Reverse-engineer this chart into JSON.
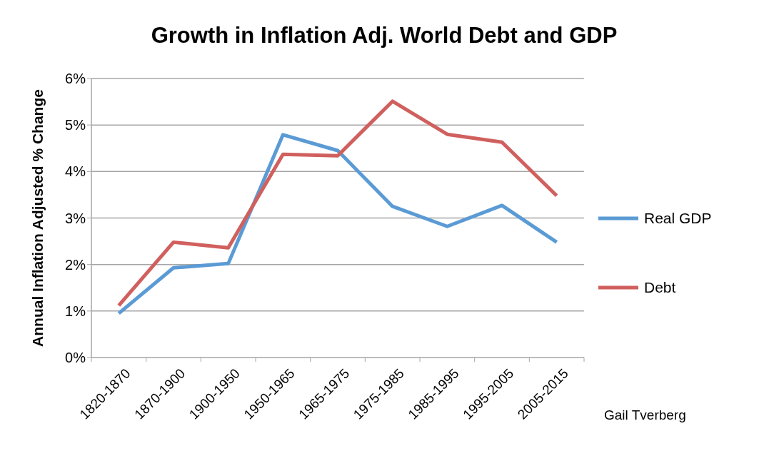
{
  "chart_data": {
    "type": "line",
    "title": "Growth in Inflation Adj. World Debt and GDP",
    "ylabel": "Annual Inflation Adjusted % Change",
    "categories": [
      "1820-1870",
      "1870-1900",
      "1900-1950",
      "1950-1965",
      "1965-1975",
      "1975-1985",
      "1985-1995",
      "1995-2005",
      "2005-2015"
    ],
    "series": [
      {
        "name": "Real GDP",
        "color": "#5b9bd5",
        "values": [
          0.95,
          1.93,
          2.02,
          4.79,
          4.45,
          3.25,
          2.82,
          3.27,
          2.48
        ]
      },
      {
        "name": "Debt",
        "color": "#d0605e",
        "values": [
          1.12,
          2.48,
          2.36,
          4.37,
          4.34,
          5.51,
          4.8,
          4.63,
          3.48
        ]
      }
    ],
    "ylim": [
      0,
      6
    ],
    "yticks": [
      {
        "value": 0,
        "label": "0%"
      },
      {
        "value": 1,
        "label": "1%"
      },
      {
        "value": 2,
        "label": "2%"
      },
      {
        "value": 3,
        "label": "3%"
      },
      {
        "value": 4,
        "label": "4%"
      },
      {
        "value": 5,
        "label": "5%"
      },
      {
        "value": 6,
        "label": "6%"
      }
    ],
    "grid": "y",
    "legend": "right",
    "marker": "none",
    "line_style": "solid",
    "annotations": [
      "Gail Tverberg"
    ]
  }
}
